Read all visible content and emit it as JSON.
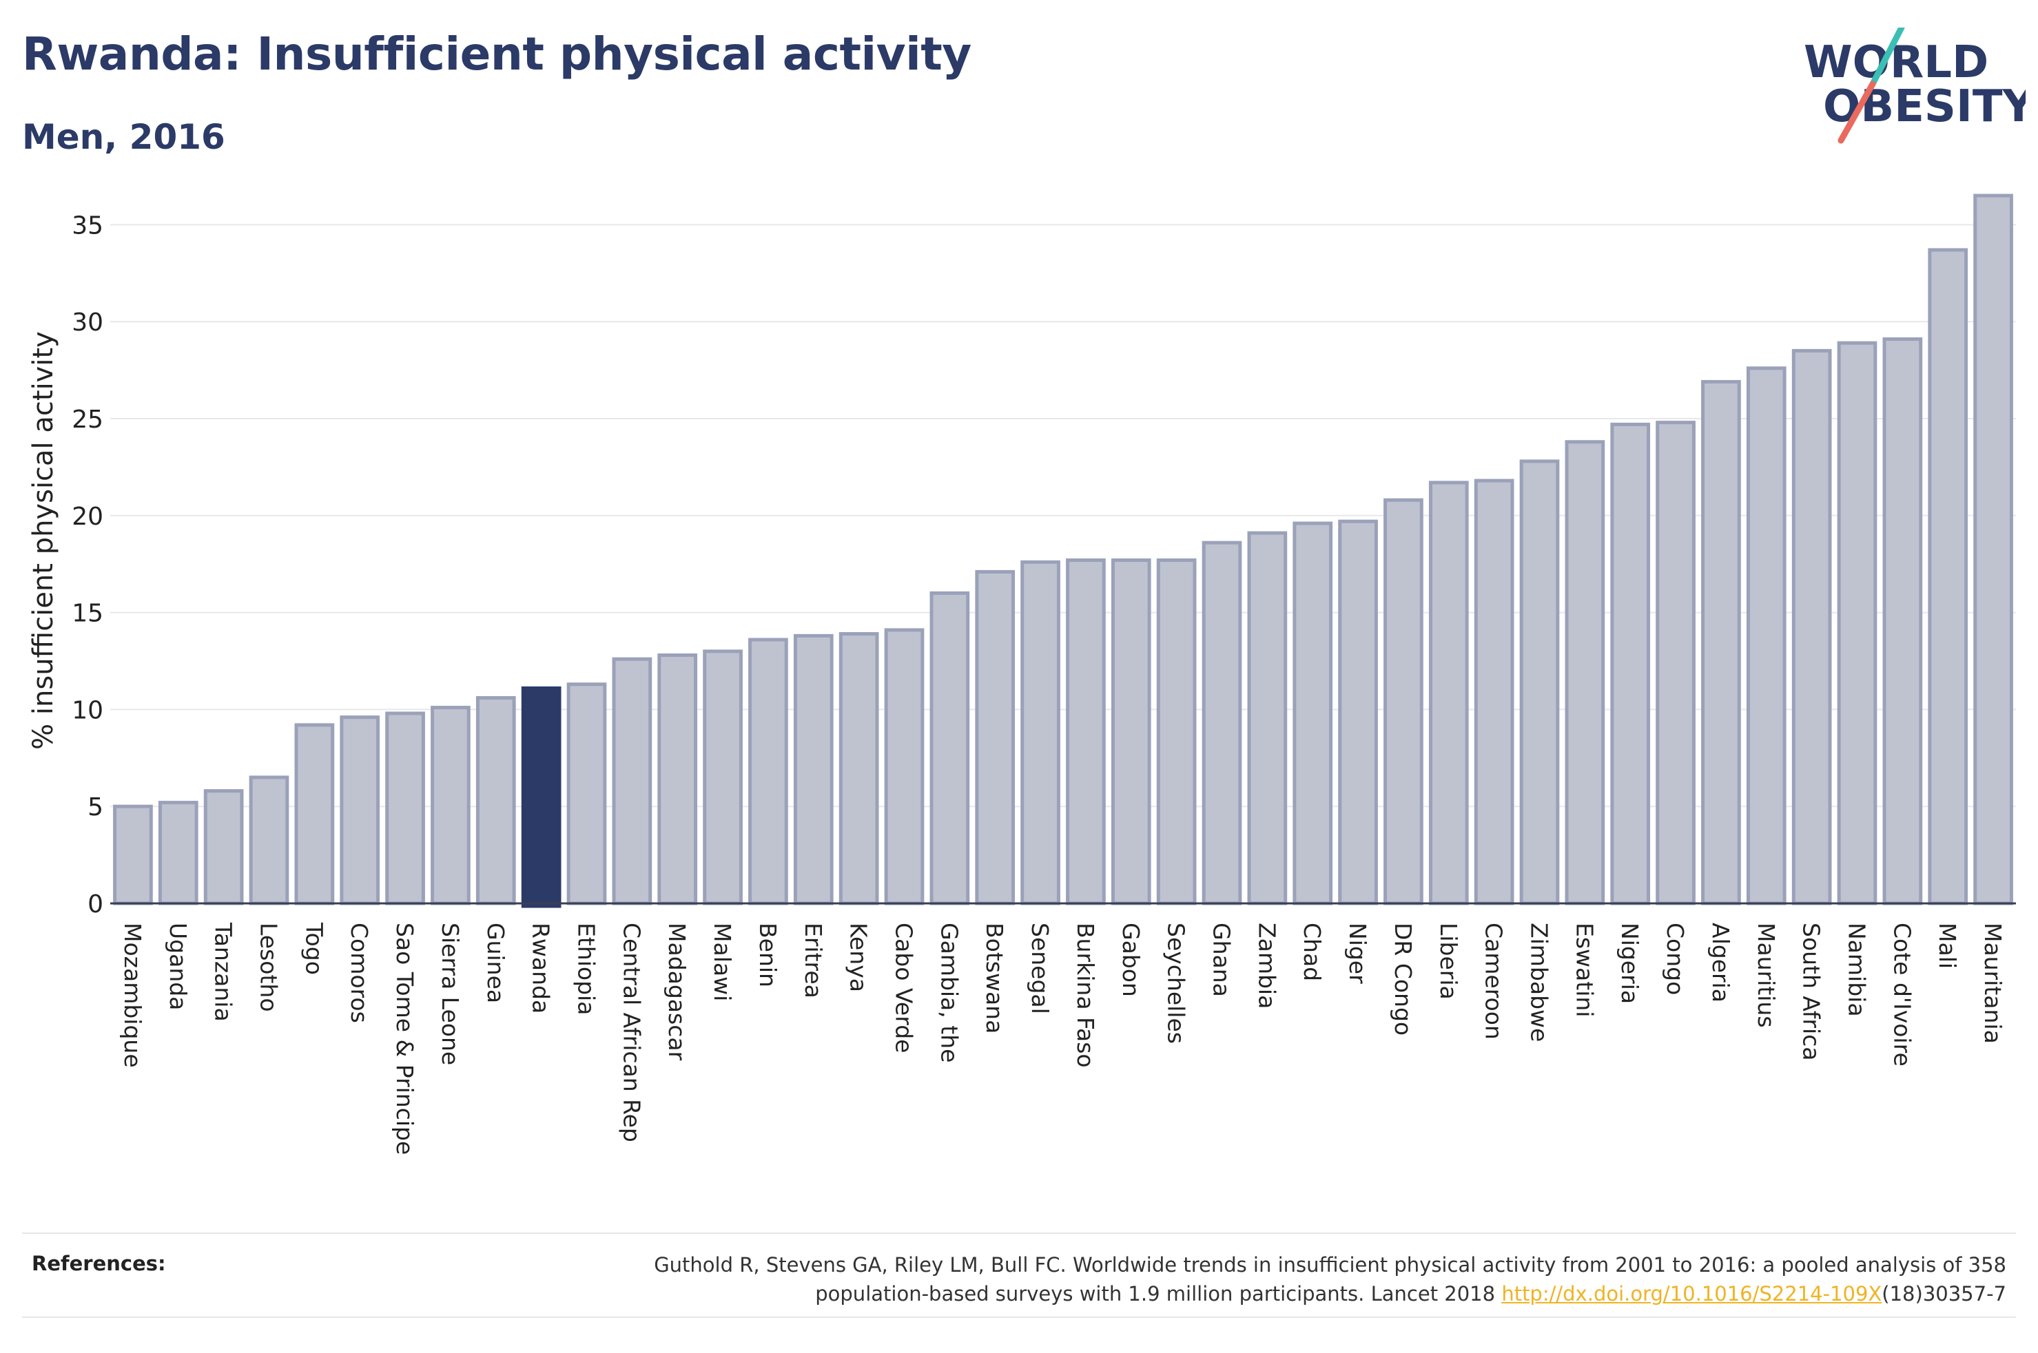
{
  "title": "Rwanda: Insufficient physical activity",
  "subtitle": "Men, 2016",
  "logo": {
    "line1": "WORLD",
    "line2": "OBESITY"
  },
  "references": {
    "label": "References:",
    "text_line1": "Guthold R, Stevens GA, Riley LM, Bull FC. Worldwide trends in insufficient physical activity from 2001 to 2016: a pooled analysis of 358",
    "text_line2_prefix": "population-based surveys with 1.9 million participants. Lancet 2018 ",
    "link": "http://dx.doi.org/10.1016/S2214-109X",
    "text_line2_suffix": "(18)30357-7"
  },
  "colors": {
    "title": "#2b3a67",
    "bar_fill": "#bfc3d0",
    "bar_stroke": "#9aa1b9",
    "highlight": "#2b3a67",
    "link": "#f0b323",
    "logo_teal": "#3bbfb4",
    "logo_coral": "#ea6a5d"
  },
  "chart_data": {
    "type": "bar",
    "ylabel": "% insufficient physical activity",
    "ylim": [
      0,
      37
    ],
    "yticks": [
      0,
      5,
      10,
      15,
      20,
      25,
      30,
      35
    ],
    "grid": true,
    "highlight": "Rwanda",
    "categories": [
      "Mozambique",
      "Uganda",
      "Tanzania",
      "Lesotho",
      "Togo",
      "Comoros",
      "Sao Tome & Principe",
      "Sierra Leone",
      "Guinea",
      "Rwanda",
      "Ethiopia",
      "Central African Rep",
      "Madagascar",
      "Malawi",
      "Benin",
      "Eritrea",
      "Kenya",
      "Cabo Verde",
      "Gambia, the",
      "Botswana",
      "Senegal",
      "Burkina Faso",
      "Gabon",
      "Seychelles",
      "Ghana",
      "Zambia",
      "Chad",
      "Niger",
      "DR Congo",
      "Liberia",
      "Cameroon",
      "Zimbabwe",
      "Eswatini",
      "Nigeria",
      "Congo",
      "Algeria",
      "Mauritius",
      "South Africa",
      "Namibia",
      "Cote d'Ivoire",
      "Mali",
      "Mauritania"
    ],
    "values": [
      5.0,
      5.2,
      5.8,
      6.5,
      9.2,
      9.6,
      9.8,
      10.1,
      10.6,
      11.1,
      11.3,
      12.6,
      12.8,
      13.0,
      13.6,
      13.8,
      13.9,
      14.1,
      16.0,
      17.1,
      17.6,
      17.7,
      17.7,
      17.7,
      18.6,
      19.1,
      19.6,
      19.7,
      20.8,
      21.7,
      21.8,
      22.8,
      23.8,
      24.7,
      24.8,
      26.9,
      27.6,
      28.5,
      28.9,
      29.1,
      33.7,
      36.5
    ]
  }
}
